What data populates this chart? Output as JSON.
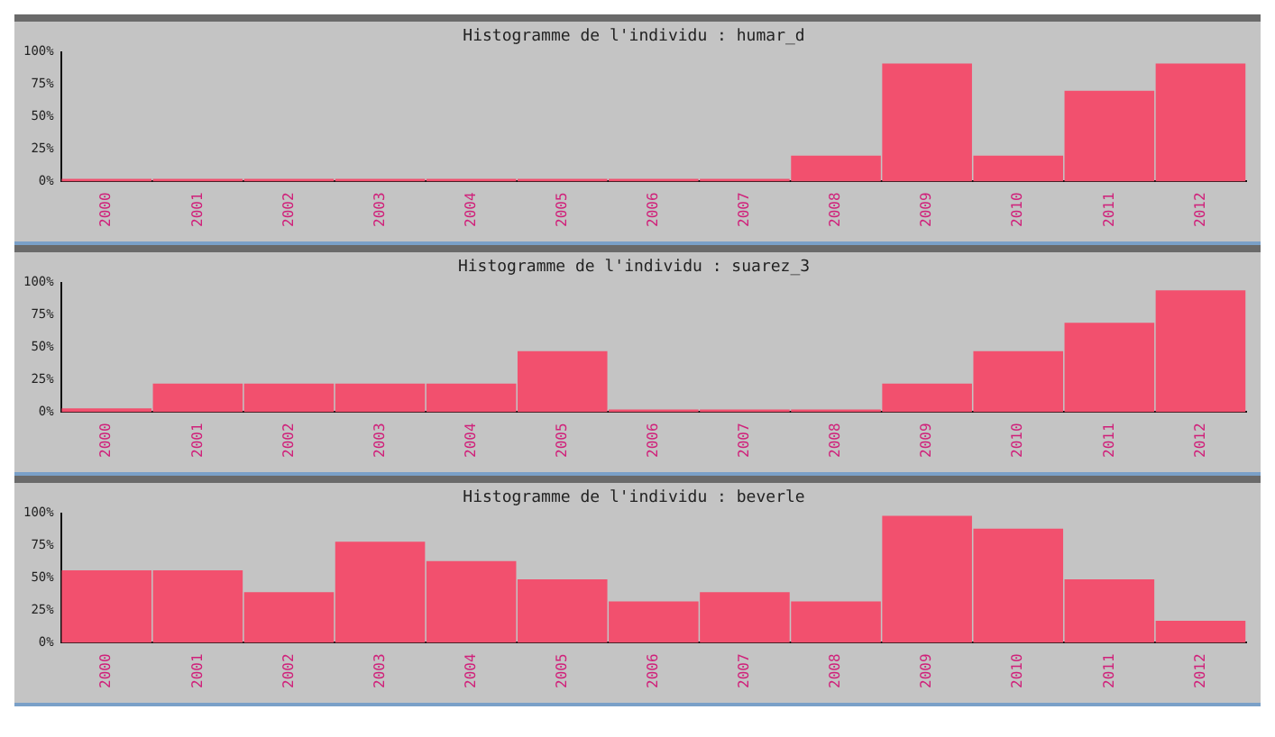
{
  "chart_data": [
    {
      "type": "bar",
      "title": "Histogramme de l'individu : humar_d",
      "categories": [
        "2000",
        "2001",
        "2002",
        "2003",
        "2004",
        "2005",
        "2006",
        "2007",
        "2008",
        "2009",
        "2010",
        "2011",
        "2012"
      ],
      "values": [
        2,
        2,
        2,
        2,
        2,
        2,
        2,
        2,
        20,
        91,
        20,
        70,
        91
      ],
      "color": "#f2506e",
      "ylim": [
        0,
        100
      ],
      "yticks": [
        {
          "value": 0,
          "label": "0%"
        },
        {
          "value": 25,
          "label": "25%"
        },
        {
          "value": 50,
          "label": "50%"
        },
        {
          "value": 75,
          "label": "75%"
        },
        {
          "value": 100,
          "label": "100%"
        }
      ],
      "grid": false
    },
    {
      "type": "bar",
      "title": "Histogramme de l'individu : suarez_3",
      "categories": [
        "2000",
        "2001",
        "2002",
        "2003",
        "2004",
        "2005",
        "2006",
        "2007",
        "2008",
        "2009",
        "2010",
        "2011",
        "2012"
      ],
      "values": [
        3,
        22,
        22,
        22,
        22,
        47,
        2,
        2,
        2,
        22,
        47,
        69,
        94
      ],
      "color": "#f2506e",
      "ylim": [
        0,
        100
      ],
      "yticks": [
        {
          "value": 0,
          "label": "0%"
        },
        {
          "value": 25,
          "label": "25%"
        },
        {
          "value": 50,
          "label": "50%"
        },
        {
          "value": 75,
          "label": "75%"
        },
        {
          "value": 100,
          "label": "100%"
        }
      ],
      "grid": false
    },
    {
      "type": "bar",
      "title": "Histogramme de l'individu : beverle",
      "categories": [
        "2000",
        "2001",
        "2002",
        "2003",
        "2004",
        "2005",
        "2006",
        "2007",
        "2008",
        "2009",
        "2010",
        "2011",
        "2012"
      ],
      "values": [
        56,
        56,
        39,
        78,
        63,
        49,
        32,
        39,
        32,
        98,
        88,
        49,
        17
      ],
      "color": "#f2506e",
      "ylim": [
        0,
        100
      ],
      "yticks": [
        {
          "value": 0,
          "label": "0%"
        },
        {
          "value": 25,
          "label": "25%"
        },
        {
          "value": 50,
          "label": "50%"
        },
        {
          "value": 75,
          "label": "75%"
        },
        {
          "value": 100,
          "label": "100%"
        }
      ],
      "grid": false
    }
  ]
}
